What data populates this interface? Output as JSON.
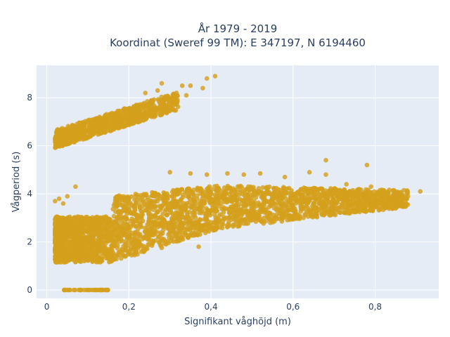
{
  "chart_data": {
    "type": "scatter",
    "title_line1": "År 1979 - 2019",
    "title_line2": "Koordinat (Sweref 99 TM): E 347197, N 6194460",
    "xlabel": "Signifikant våghöjd (m)",
    "ylabel": "Vågperiod (s)",
    "xlim": [
      -0.025,
      0.955
    ],
    "ylim": [
      -0.35,
      9.35
    ],
    "x_ticks": [
      0,
      0.2,
      0.4,
      0.6,
      0.8
    ],
    "x_tick_labels": [
      "0",
      "0,2",
      "0,4",
      "0,6",
      "0,8"
    ],
    "y_ticks": [
      0,
      2,
      4,
      6,
      8
    ],
    "y_tick_labels": [
      "0",
      "2",
      "4",
      "6",
      "8"
    ],
    "grid": true,
    "marker_color": "#d4a01c",
    "background_color": "#e5ecf6",
    "clusters": [
      {
        "name": "swell-band",
        "x_range": [
          0.02,
          0.32
        ],
        "y_start": [
          5.8,
          6.8
        ],
        "y_end": [
          7.3,
          8.2
        ]
      },
      {
        "name": "wind-sea-band",
        "x_range": [
          0.02,
          0.91
        ],
        "y_base": [
          1.2,
          3.0
        ]
      },
      {
        "name": "zero-period",
        "x_range": [
          0.04,
          0.15
        ],
        "y": 0
      }
    ],
    "points": [
      [
        0.24,
        8.2
      ],
      [
        0.28,
        8.6
      ],
      [
        0.33,
        8.5
      ],
      [
        0.35,
        8.5
      ],
      [
        0.38,
        8.4
      ],
      [
        0.39,
        8.8
      ],
      [
        0.41,
        8.9
      ],
      [
        0.34,
        8.1
      ],
      [
        0.31,
        8.0
      ],
      [
        0.27,
        8.3
      ],
      [
        0.3,
        4.9
      ],
      [
        0.35,
        4.85
      ],
      [
        0.39,
        4.8
      ],
      [
        0.44,
        4.85
      ],
      [
        0.48,
        4.8
      ],
      [
        0.52,
        4.85
      ],
      [
        0.58,
        4.7
      ],
      [
        0.64,
        4.9
      ],
      [
        0.68,
        4.8
      ],
      [
        0.73,
        4.4
      ],
      [
        0.78,
        5.2
      ],
      [
        0.79,
        4.3
      ],
      [
        0.68,
        5.4
      ],
      [
        0.87,
        4.15
      ],
      [
        0.91,
        4.1
      ],
      [
        0.88,
        3.9
      ],
      [
        0.84,
        3.85
      ],
      [
        0.86,
        4.05
      ],
      [
        0.02,
        3.7
      ],
      [
        0.03,
        3.8
      ],
      [
        0.05,
        3.9
      ],
      [
        0.07,
        4.3
      ],
      [
        0.04,
        3.6
      ],
      [
        0.26,
        2.8
      ],
      [
        0.32,
        2.6
      ],
      [
        0.37,
        1.8
      ],
      [
        0.28,
        1.75
      ],
      [
        0.23,
        1.6
      ]
    ]
  }
}
